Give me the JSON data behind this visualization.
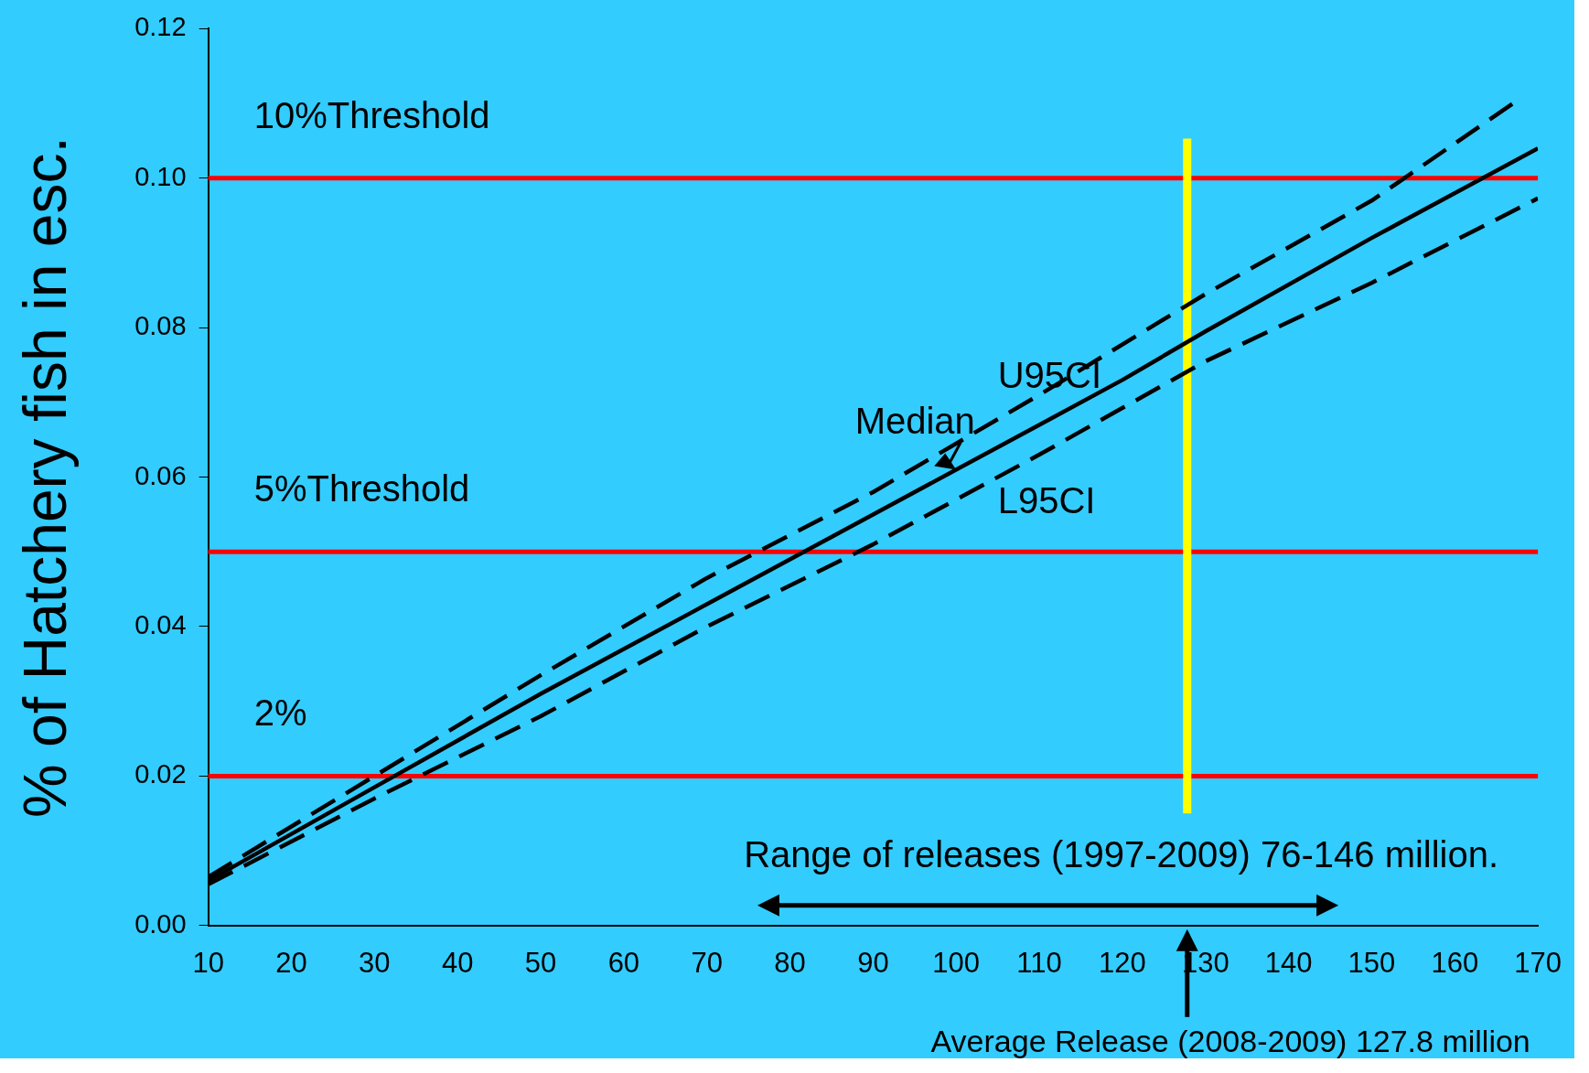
{
  "chart_data": {
    "type": "line",
    "ylabel": "% of Hatchery fish in esc.",
    "xlim": [
      10,
      170
    ],
    "ylim": [
      0,
      0.12
    ],
    "xticks": [
      10,
      20,
      30,
      40,
      50,
      60,
      70,
      80,
      90,
      100,
      110,
      120,
      130,
      140,
      150,
      160,
      170
    ],
    "yticks": [
      {
        "value": 0,
        "label": "0.00"
      },
      0.02,
      0.04,
      0.06,
      0.08,
      {
        "value": 0.1,
        "label": "0.10"
      },
      0.12
    ],
    "grid": false,
    "legend": false,
    "marker": "none",
    "series": [
      {
        "name": "Median",
        "color": "#000000",
        "line_style": "solid",
        "x": [
          10,
          30,
          50,
          70,
          90,
          110,
          120,
          130,
          150,
          170
        ],
        "values": [
          0.006,
          0.0185,
          0.031,
          0.043,
          0.055,
          0.067,
          0.073,
          0.0795,
          0.092,
          0.104
        ]
      },
      {
        "name": "U95CI",
        "color": "#000000",
        "line_style": "dashed",
        "x": [
          10,
          30,
          50,
          70,
          90,
          110,
          130,
          150,
          167
        ],
        "values": [
          0.0065,
          0.02,
          0.0335,
          0.0465,
          0.058,
          0.071,
          0.0845,
          0.097,
          0.11
        ]
      },
      {
        "name": "L95CI",
        "color": "#000000",
        "line_style": "dashed",
        "x": [
          10,
          30,
          50,
          70,
          90,
          110,
          130,
          150,
          170
        ],
        "values": [
          0.0055,
          0.017,
          0.028,
          0.04,
          0.051,
          0.063,
          0.0755,
          0.086,
          0.0973
        ]
      }
    ],
    "ref_lines": [
      {
        "axis": "y",
        "value": 0.1,
        "label": "10%Threshold",
        "color": "#ff0000"
      },
      {
        "axis": "y",
        "value": 0.05,
        "label": "5%Threshold",
        "color": "#ff0000"
      },
      {
        "axis": "y",
        "value": 0.02,
        "label": "2%",
        "color": "#ff0000"
      },
      {
        "axis": "x",
        "value": 127.8,
        "color": "#ffff00"
      }
    ],
    "annotations": [
      "Range of releases (1997-2009) 76-146 million.",
      "Average Release (2008-2009) 127.8 million"
    ]
  }
}
